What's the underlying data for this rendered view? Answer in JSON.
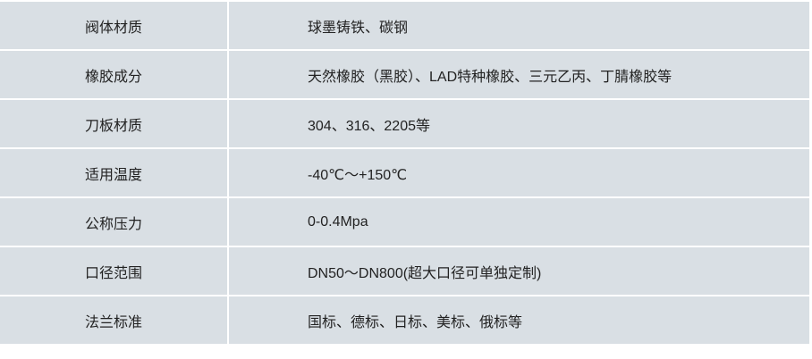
{
  "rows": [
    {
      "label": "阀体材质",
      "value": "球墨铸铁、碳钢"
    },
    {
      "label": "橡胶成分",
      "value": "天然橡胶（黑胶）、LAD特种橡胶、三元乙丙、丁腈橡胶等"
    },
    {
      "label": " 刀板材质",
      "value": "304、316、2205等"
    },
    {
      "label": "适用温度",
      "value": "-40℃～+150℃"
    },
    {
      "label": "公称压力",
      "value": "0-0.4Mpa"
    },
    {
      "label": "口径范围",
      "value": "DN50～DN800(超大口径可单独定制)"
    },
    {
      "label": "法兰标准",
      "value": "国标、德标、日标、美标、俄标等"
    }
  ]
}
